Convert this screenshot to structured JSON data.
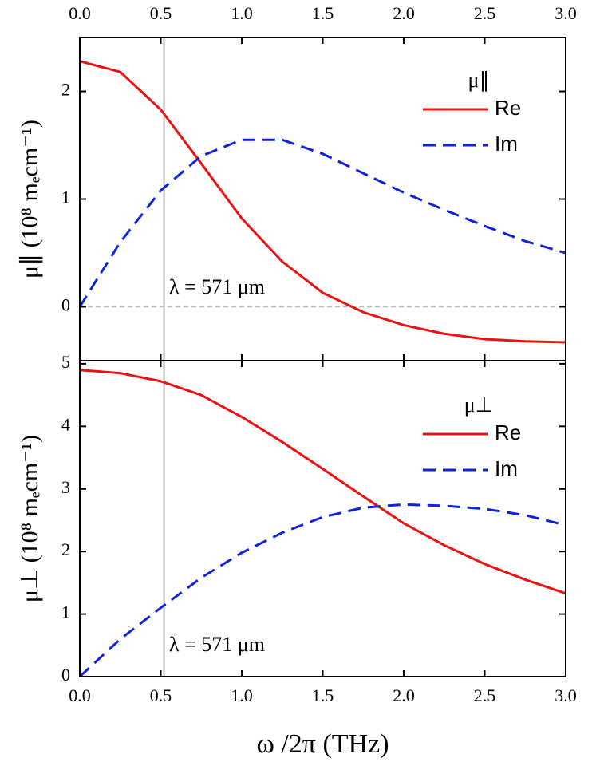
{
  "chart_data": [
    {
      "type": "line",
      "y_label": "μ∥ (10⁸ mₑcm⁻¹)",
      "legend_title": "μ∥",
      "x": [
        0,
        0.25,
        0.5,
        0.75,
        1.0,
        1.25,
        1.5,
        1.75,
        2.0,
        2.25,
        2.5,
        2.75,
        3.0
      ],
      "series": [
        {
          "name": "Re",
          "color": "#ee1111",
          "dash": false,
          "values": [
            2.28,
            2.18,
            1.83,
            1.33,
            0.82,
            0.42,
            0.13,
            -0.05,
            -0.17,
            -0.25,
            -0.3,
            -0.32,
            -0.33
          ]
        },
        {
          "name": "Im",
          "color": "#1122dd",
          "dash": true,
          "values": [
            0,
            0.6,
            1.08,
            1.4,
            1.55,
            1.55,
            1.42,
            1.24,
            1.06,
            0.9,
            0.75,
            0.61,
            0.5
          ]
        }
      ],
      "xlim": [
        0,
        3
      ],
      "xticks": [
        {
          "value": 0,
          "label": "0.0"
        },
        {
          "value": 0.5,
          "label": "0.5"
        },
        {
          "value": 1,
          "label": "1.0"
        },
        {
          "value": 1.5,
          "label": "1.5"
        },
        {
          "value": 2,
          "label": "2.0"
        },
        {
          "value": 2.5,
          "label": "2.5"
        },
        {
          "value": 3,
          "label": "3.0"
        }
      ],
      "xtick_side": "top",
      "ylim": [
        -0.5,
        2.5
      ],
      "yticks": [
        0,
        1,
        2
      ],
      "hline": 0,
      "vline": 0.52,
      "annotation": "λ = 571 μm"
    },
    {
      "type": "line",
      "y_label": "μ⊥ (10⁸ mₑcm⁻¹)",
      "legend_title": "μ⊥",
      "x_label": "ω /2π (THz)",
      "x": [
        0,
        0.25,
        0.5,
        0.75,
        1.0,
        1.25,
        1.5,
        1.75,
        2.0,
        2.25,
        2.5,
        2.75,
        3.0
      ],
      "series": [
        {
          "name": "Re",
          "color": "#ee1111",
          "dash": false,
          "values": [
            4.9,
            4.85,
            4.72,
            4.5,
            4.15,
            3.75,
            3.32,
            2.88,
            2.45,
            2.1,
            1.8,
            1.55,
            1.33
          ]
        },
        {
          "name": "Im",
          "color": "#1122dd",
          "dash": true,
          "values": [
            0,
            0.6,
            1.1,
            1.58,
            1.98,
            2.3,
            2.55,
            2.7,
            2.75,
            2.73,
            2.68,
            2.58,
            2.42
          ]
        }
      ],
      "xlim": [
        0,
        3
      ],
      "xticks": [
        {
          "value": 0,
          "label": "0.0"
        },
        {
          "value": 0.5,
          "label": "0.5"
        },
        {
          "value": 1,
          "label": "1.0"
        },
        {
          "value": 1.5,
          "label": "1.5"
        },
        {
          "value": 2,
          "label": "2.0"
        },
        {
          "value": 2.5,
          "label": "2.5"
        },
        {
          "value": 3,
          "label": "3.0"
        }
      ],
      "xtick_side": "bottom",
      "ylim": [
        0,
        5.05
      ],
      "yticks": [
        0,
        1,
        2,
        3,
        4,
        5
      ],
      "vline": 0.52,
      "annotation": "λ = 571 μm"
    }
  ]
}
